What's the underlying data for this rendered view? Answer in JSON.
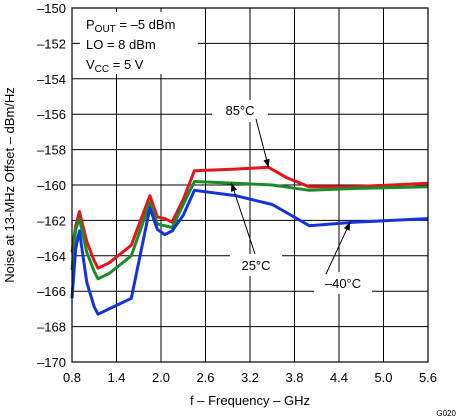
{
  "chart_data": {
    "type": "line",
    "xlabel": "f – Frequency – GHz",
    "ylabel": "Noise at 13-MHz Offset – dBm/Hz",
    "xlim": [
      0.8,
      5.6
    ],
    "ylim": [
      -170,
      -150
    ],
    "x_ticks": [
      "0.8",
      "1.4",
      "2.0",
      "2.6",
      "3.2",
      "3.8",
      "4.4",
      "5.0",
      "5.6"
    ],
    "y_ticks": [
      "–150",
      "–152",
      "–154",
      "–156",
      "–158",
      "–160",
      "–162",
      "–164",
      "–166",
      "–168",
      "–170"
    ],
    "grid": true,
    "conditions": {
      "pout": {
        "main": "P",
        "sub": "OUT",
        "rest": " =  –5 dBm"
      },
      "lo": "LO = 8 dBm",
      "vcc": {
        "main": "V",
        "sub": "CC",
        "rest": " = 5 V"
      }
    },
    "figure_id": "G020",
    "series": [
      {
        "name": "85°C",
        "color": "#e8141c",
        "x": [
          0.8,
          0.85,
          0.9,
          1.0,
          1.1,
          1.15,
          1.3,
          1.6,
          1.85,
          1.95,
          2.05,
          2.15,
          2.3,
          2.45,
          3.0,
          3.45,
          3.7,
          4.0,
          4.6,
          5.6
        ],
        "y": [
          -163.8,
          -162.3,
          -161.5,
          -163.2,
          -164.3,
          -164.7,
          -164.4,
          -163.4,
          -160.6,
          -161.8,
          -161.9,
          -162.1,
          -160.8,
          -159.2,
          -159.1,
          -159.0,
          -159.6,
          -160.1,
          -160.1,
          -159.9
        ]
      },
      {
        "name": "25°C",
        "color": "#1a8c2a",
        "x": [
          0.8,
          0.85,
          0.9,
          1.0,
          1.1,
          1.15,
          1.3,
          1.6,
          1.85,
          1.95,
          2.05,
          2.15,
          2.3,
          2.45,
          3.0,
          3.5,
          4.0,
          4.6,
          5.6
        ],
        "y": [
          -164.8,
          -162.5,
          -161.9,
          -163.8,
          -164.9,
          -165.3,
          -165.0,
          -164.0,
          -161.0,
          -162.2,
          -162.3,
          -162.4,
          -161.1,
          -159.8,
          -159.9,
          -160.0,
          -160.3,
          -160.2,
          -160.1
        ]
      },
      {
        "name": "–40°C",
        "color": "#1433e0",
        "x": [
          0.8,
          0.85,
          0.9,
          1.0,
          1.1,
          1.15,
          1.3,
          1.6,
          1.85,
          1.95,
          2.05,
          2.15,
          2.3,
          2.45,
          3.0,
          3.5,
          4.0,
          4.6,
          5.6
        ],
        "y": [
          -166.4,
          -163.6,
          -162.6,
          -165.5,
          -166.9,
          -167.3,
          -167.0,
          -166.4,
          -161.3,
          -162.5,
          -162.8,
          -162.6,
          -161.7,
          -160.3,
          -160.6,
          -161.1,
          -162.3,
          -162.1,
          -161.9
        ]
      }
    ],
    "annotations": [
      {
        "text": "85°C",
        "points_to": [
          3.45,
          -159.0
        ]
      },
      {
        "text": "25°C",
        "points_to": [
          2.95,
          -159.9
        ]
      },
      {
        "text": "–40°C",
        "points_to": [
          4.55,
          -162.1
        ]
      }
    ]
  }
}
